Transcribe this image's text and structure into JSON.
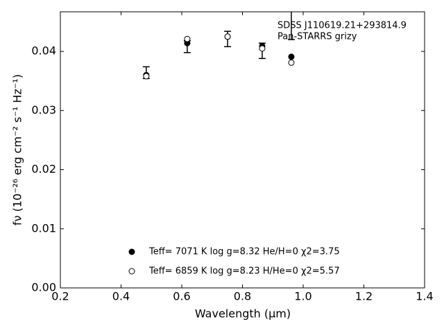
{
  "chart_data": {
    "type": "scatter",
    "xlabel": "Wavelength (μm)",
    "ylabel": "fν (10⁻²⁶ erg cm⁻² s⁻¹ Hz⁻¹)",
    "annotations": [
      "SDSS J110619.21+293814.9",
      "Pan-STARRS grizy"
    ],
    "xlim": [
      0.2,
      1.4
    ],
    "xticks": [
      0.2,
      0.4,
      0.6,
      0.8,
      {
        "value": 1,
        "label": "1.0"
      },
      1.2,
      1.4
    ],
    "ylim": [
      0,
      0.0467
    ],
    "yticks": [
      {
        "value": 0,
        "label": "0.00"
      },
      0.01,
      0.02,
      0.03,
      0.04
    ],
    "legend": "lower center",
    "observed": {
      "color": "#000000",
      "x": [
        0.483,
        0.618,
        0.751,
        0.865,
        0.961
      ],
      "values": [
        0.0364,
        0.0408,
        0.0421,
        0.0401,
        0.047
      ],
      "errors": [
        0.001,
        0.001,
        0.0013,
        0.0013,
        0.005
      ]
    },
    "series": [
      {
        "name": "Teff=  7071 K  log g=8.32  He/H=0  χ2=3.75",
        "marker": "filled",
        "color": "#000000",
        "x": [
          0.483,
          0.618,
          0.751,
          0.865,
          0.961
        ],
        "values": [
          0.036,
          0.0414,
          0.0425,
          0.0409,
          0.0391
        ]
      },
      {
        "name": "Teff=  6859 K  log g=8.23  H/He=0  χ2=5.57",
        "marker": "open",
        "color": "#000000",
        "x": [
          0.483,
          0.618,
          0.751,
          0.865,
          0.961
        ],
        "values": [
          0.0358,
          0.0421,
          0.0425,
          0.0405,
          0.0381
        ]
      }
    ]
  }
}
